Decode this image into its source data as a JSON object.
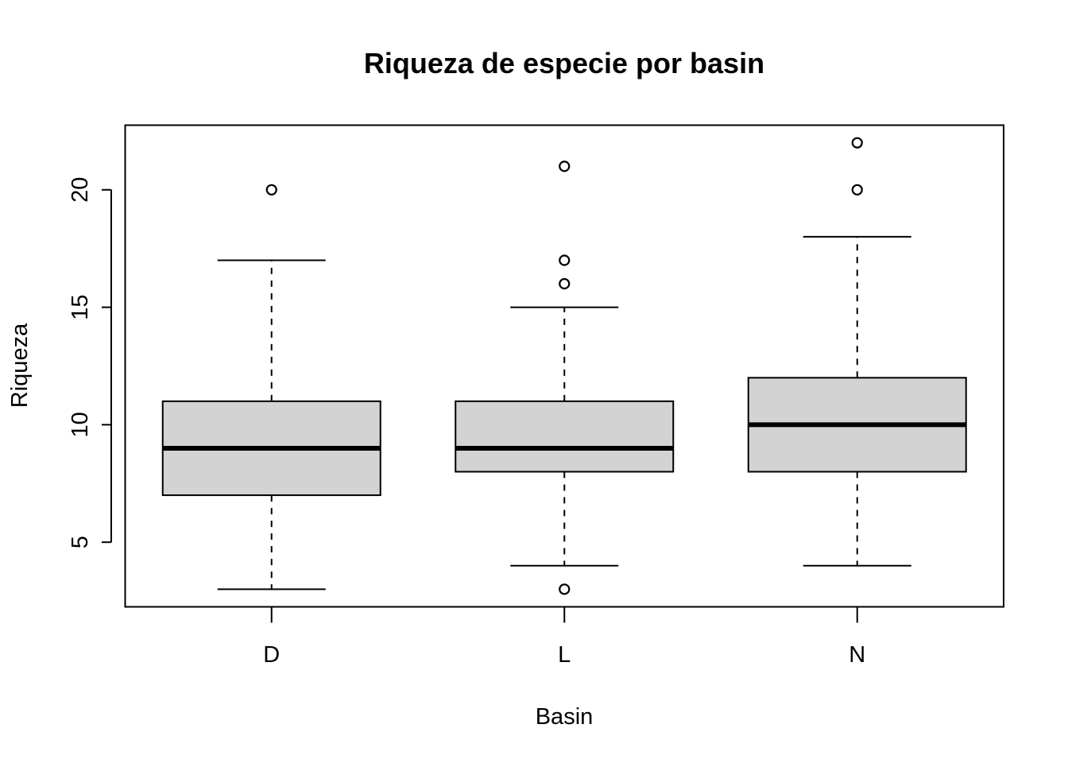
{
  "chart_data": {
    "type": "boxplot",
    "title": "Riqueza de especie por basin",
    "xlabel": "Basin",
    "ylabel": "Riqueza",
    "ylim": [
      2.25,
      22.75
    ],
    "yticks": [
      5,
      10,
      15,
      20
    ],
    "categories": [
      "D",
      "L",
      "N"
    ],
    "boxes": [
      {
        "category": "D",
        "whisker_low": 3,
        "q1": 7,
        "median": 9,
        "q3": 11,
        "whisker_high": 17,
        "outliers": [
          20
        ]
      },
      {
        "category": "L",
        "whisker_low": 4,
        "q1": 8,
        "median": 9,
        "q3": 11,
        "whisker_high": 15,
        "outliers": [
          3,
          16,
          17,
          21
        ]
      },
      {
        "category": "N",
        "whisker_low": 4,
        "q1": 8,
        "median": 10,
        "q3": 12,
        "whisker_high": 18,
        "outliers": [
          20,
          22
        ]
      }
    ],
    "box_fill": "#d3d3d3",
    "grid": false,
    "legend": "none"
  }
}
